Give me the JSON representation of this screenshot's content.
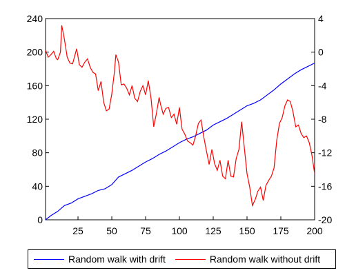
{
  "chart_data": {
    "type": "line",
    "title": "",
    "xlabel": "",
    "ylabel": "",
    "x_ticks": [
      25,
      50,
      75,
      100,
      125,
      150,
      175,
      200
    ],
    "xlim": [
      1,
      200
    ],
    "left_axis": {
      "ylim": [
        0,
        240
      ],
      "ticks": [
        0,
        40,
        80,
        120,
        160,
        200,
        240
      ]
    },
    "right_axis": {
      "ylim": [
        -20,
        4
      ],
      "ticks": [
        -20,
        -16,
        -12,
        -8,
        -4,
        0,
        4
      ]
    },
    "grid": false,
    "legend_position": "bottom",
    "series": [
      {
        "name": "Random walk with drift",
        "axis": "left",
        "color": "#0000ff",
        "x": [
          1,
          5,
          10,
          15,
          20,
          25,
          30,
          35,
          40,
          45,
          50,
          55,
          60,
          65,
          70,
          75,
          80,
          85,
          90,
          95,
          100,
          105,
          110,
          115,
          120,
          125,
          130,
          135,
          140,
          145,
          150,
          155,
          160,
          165,
          170,
          175,
          180,
          185,
          190,
          195,
          200
        ],
        "values": [
          0,
          5,
          10,
          17,
          20,
          25,
          28,
          31,
          35,
          37,
          42,
          51,
          55,
          59,
          64,
          69,
          73,
          78,
          82,
          87,
          92,
          96,
          99,
          103,
          107,
          113,
          117,
          121,
          126,
          131,
          136,
          139,
          143,
          149,
          155,
          162,
          168,
          174,
          179,
          183,
          187
        ]
      },
      {
        "name": "Random walk without drift",
        "axis": "right",
        "color": "#ff0000",
        "x": [
          1,
          3,
          5,
          7,
          9,
          10,
          12,
          13,
          15,
          17,
          19,
          21,
          23,
          24,
          26,
          28,
          30,
          32,
          34,
          36,
          38,
          40,
          42,
          44,
          46,
          48,
          50,
          52,
          53,
          55,
          57,
          59,
          61,
          63,
          65,
          67,
          69,
          71,
          73,
          75,
          77,
          79,
          81,
          83,
          85,
          86,
          88,
          90,
          92,
          94,
          96,
          98,
          100,
          102,
          104,
          106,
          108,
          110,
          112,
          114,
          116,
          118,
          120,
          122,
          124,
          126,
          128,
          130,
          132,
          134,
          136,
          138,
          140,
          142,
          144,
          146,
          148,
          150,
          152,
          154,
          156,
          158,
          160,
          162,
          164,
          166,
          168,
          170,
          172,
          174,
          176,
          178,
          180,
          182,
          184,
          186,
          188,
          190,
          192,
          194,
          196,
          198,
          200
        ],
        "values": [
          0.2,
          -0.6,
          -0.3,
          0.1,
          -0.8,
          -0.9,
          0,
          3.2,
          1.5,
          -0.6,
          -1.3,
          -1.4,
          -0.2,
          0.4,
          -1.5,
          -1.8,
          -1.2,
          -0.8,
          -1.8,
          -2.4,
          -2.6,
          -4.6,
          -3.5,
          -6,
          -7,
          -6.8,
          -5,
          -2.3,
          -0.3,
          -1.2,
          -3.9,
          -3.8,
          -4.3,
          -5.1,
          -4,
          -5.5,
          -5.9,
          -4.7,
          -4,
          -5.1,
          -3.4,
          -5.5,
          -8.9,
          -7.3,
          -5.4,
          -6.2,
          -7.4,
          -6.7,
          -6.6,
          -7.8,
          -7.4,
          -8.6,
          -6.6,
          -9.2,
          -9.8,
          -10.6,
          -10.8,
          -11.1,
          -10,
          -8.5,
          -8.1,
          -10.1,
          -11.8,
          -13.4,
          -11.6,
          -13.3,
          -14.1,
          -12.9,
          -14.8,
          -15.1,
          -12.9,
          -14.8,
          -14.9,
          -12.7,
          -11.6,
          -8.3,
          -11.4,
          -14.5,
          -16.1,
          -18.3,
          -17.6,
          -16.6,
          -16.1,
          -17.7,
          -15.9,
          -15.3,
          -14.8,
          -13.8,
          -10.5,
          -8.5,
          -7.8,
          -6.4,
          -5.7,
          -5.9,
          -7.1,
          -8.9,
          -8.7,
          -9.7,
          -10.2,
          -10,
          -10.8,
          -12.3,
          -14.5
        ]
      }
    ]
  },
  "colors": {
    "axis": "#000000"
  }
}
